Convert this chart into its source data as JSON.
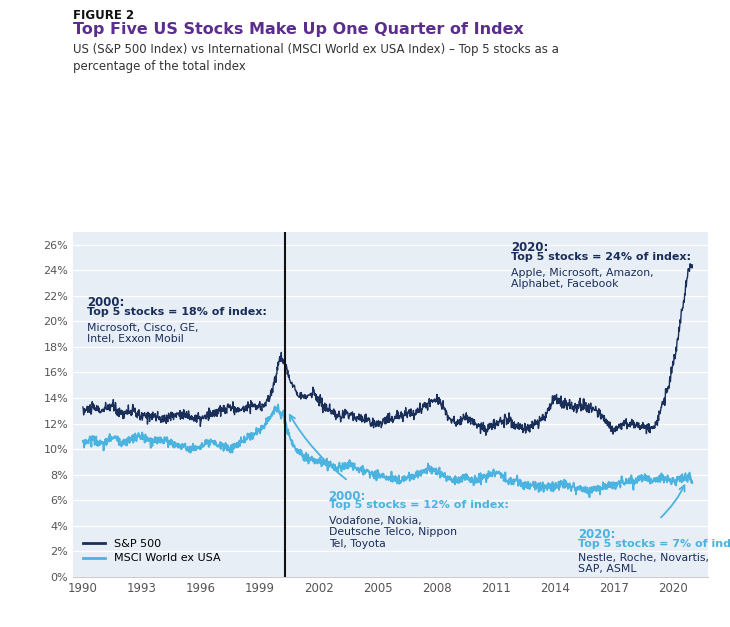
{
  "figure_label": "FIGURE 2",
  "title": "Top Five US Stocks Make Up One Quarter of Index",
  "subtitle": "US (S&P 500 Index) vs International (MSCI World ex USA Index) – Top 5 stocks as a\npercentage of the total index",
  "sp500_color": "#1a2e5a",
  "msci_color": "#4ab3e0",
  "vline_x": 2000.3,
  "vline_color": "#111111",
  "ylim": [
    0,
    27
  ],
  "yticks": [
    0,
    2,
    4,
    6,
    8,
    10,
    12,
    14,
    16,
    18,
    20,
    22,
    24,
    26
  ],
  "xticks": [
    1990,
    1993,
    1996,
    1999,
    2002,
    2005,
    2008,
    2011,
    2014,
    2017,
    2020
  ],
  "xlim": [
    1989.5,
    2021.8
  ],
  "plot_bg_color": "#e8eef5",
  "fig_bg_color": "#ffffff",
  "title_color": "#5b2d8e",
  "dark_color": "#1a2e5a",
  "light_color": "#4ab3e0",
  "legend_sp500": "S&P 500",
  "legend_msci": "MSCI World ex USA"
}
